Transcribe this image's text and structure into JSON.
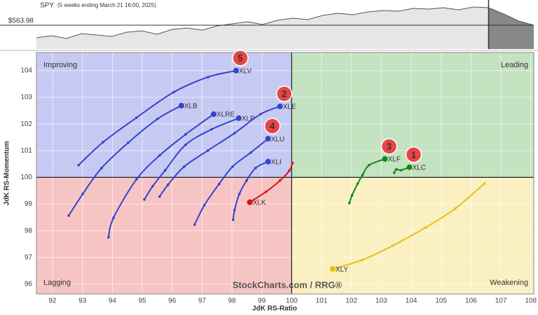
{
  "chart_data": {
    "type": "rrg",
    "spy": {
      "title": "SPY",
      "subtitle": "(5 weeks ending March 21 16:00, 2025)",
      "values": [
        546,
        549,
        545,
        552,
        550,
        548,
        554,
        556,
        551,
        558,
        560,
        557,
        563,
        566,
        569,
        565,
        571,
        574,
        572,
        578,
        581,
        579,
        583,
        585,
        584,
        588,
        587,
        589,
        586,
        590,
        589,
        580,
        570,
        563.98
      ],
      "ylim": [
        530,
        590
      ],
      "highlight_start": 30,
      "last_price": 563.98,
      "last_price_label": "$563.98",
      "color": "#555555"
    },
    "xlabel": "JdK RS-Ratio",
    "ylabel": "JdK RS-Momentum",
    "xlim": [
      91.46,
      108.1
    ],
    "ylim": [
      95.63,
      104.68
    ],
    "xticks": [
      92,
      93,
      94,
      95,
      96,
      97,
      98,
      99,
      100,
      101,
      102,
      103,
      104,
      105,
      106,
      107,
      108
    ],
    "yticks": [
      96,
      97,
      98,
      99,
      100,
      101,
      102,
      103,
      104
    ],
    "grid": true,
    "center": [
      100,
      100
    ],
    "quadrants": {
      "improving": "Improving",
      "leading": "Leading",
      "lagging": "Lagging",
      "weakening": "Weakening"
    },
    "watermark": "StockCharts.com / RRG®",
    "series": [
      {
        "name": "XLV",
        "color": "#3344cc",
        "badge": "5",
        "x": [
          92.87,
          93.69,
          94.81,
          96.05,
          97.2,
          98.14
        ],
        "y": [
          100.46,
          101.32,
          102.24,
          103.19,
          103.76,
          104.0
        ]
      },
      {
        "name": "XLB",
        "color": "#3344cc",
        "x": [
          92.54,
          93.01,
          93.64,
          94.53,
          95.51,
          96.31
        ],
        "y": [
          98.57,
          99.38,
          100.35,
          101.3,
          102.19,
          102.69
        ]
      },
      {
        "name": "XLRE",
        "color": "#3344cc",
        "x": [
          93.87,
          94.04,
          94.81,
          95.58,
          96.45,
          97.39
        ],
        "y": [
          97.75,
          98.49,
          99.93,
          100.82,
          101.61,
          102.37
        ]
      },
      {
        "name": "XLP",
        "color": "#3344cc",
        "x": [
          95.07,
          95.35,
          95.77,
          96.45,
          97.32,
          98.23
        ],
        "y": [
          99.17,
          99.67,
          100.27,
          101.22,
          101.8,
          102.22
        ]
      },
      {
        "name": "XLE",
        "color": "#3344cc",
        "badge": "2",
        "x": [
          95.58,
          95.86,
          96.4,
          97.2,
          98.09,
          98.96,
          99.61
        ],
        "y": [
          99.28,
          99.72,
          100.4,
          101.01,
          101.66,
          102.37,
          102.66
        ]
      },
      {
        "name": "XLU",
        "color": "#3344cc",
        "badge": "4",
        "x": [
          96.75,
          97.08,
          97.57,
          98.02,
          98.63,
          99.21
        ],
        "y": [
          98.23,
          98.96,
          99.75,
          100.4,
          100.93,
          101.45
        ]
      },
      {
        "name": "XLI",
        "color": "#3344cc",
        "x": [
          98.04,
          98.09,
          98.25,
          98.49,
          98.79,
          99.21
        ],
        "y": [
          98.41,
          98.78,
          99.38,
          99.88,
          100.35,
          100.59
        ]
      },
      {
        "name": "XLK",
        "color": "#dd1111",
        "x": [
          100.03,
          99.92,
          99.61,
          99.14,
          98.6
        ],
        "y": [
          100.54,
          100.25,
          99.88,
          99.46,
          99.07
        ]
      },
      {
        "name": "XLF",
        "color": "#118811",
        "badge": "3",
        "x": [
          101.93,
          102.02,
          102.21,
          102.37,
          102.59,
          103.12
        ],
        "y": [
          99.04,
          99.33,
          99.77,
          100.09,
          100.46,
          100.69
        ]
      },
      {
        "name": "XLC",
        "color": "#118811",
        "badge": "1",
        "x": [
          103.43,
          103.5,
          103.66,
          103.94
        ],
        "y": [
          100.17,
          100.3,
          100.27,
          100.38
        ]
      },
      {
        "name": "XLY",
        "color": "#e8c010",
        "x": [
          106.45,
          105.47,
          104.48,
          103.38,
          102.37,
          101.37
        ],
        "y": [
          99.77,
          98.83,
          98.12,
          97.44,
          96.91,
          96.57
        ]
      }
    ]
  }
}
